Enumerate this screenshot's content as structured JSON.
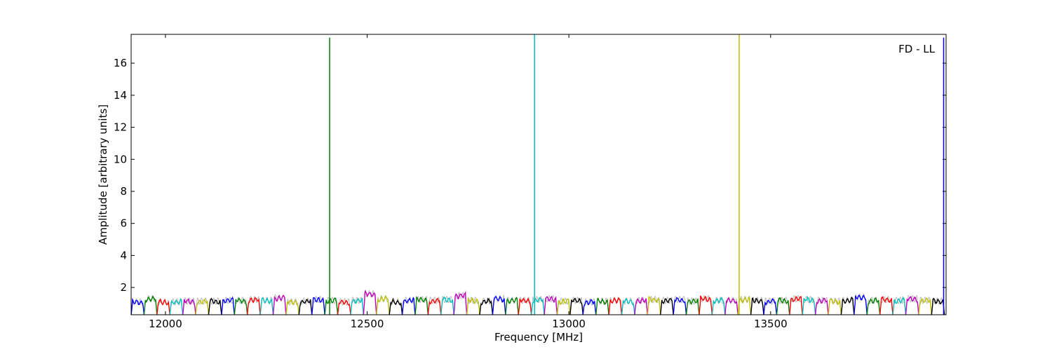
{
  "chart_data": {
    "type": "line",
    "title": "",
    "annotation": "FD - LL",
    "xlabel": "Frequency [MHz]",
    "ylabel": "Amplitude [arbitrary units]",
    "xlim": [
      11915,
      13935
    ],
    "ylim": [
      0.3,
      17.8
    ],
    "xticks": [
      12000,
      12500,
      13000,
      13500
    ],
    "xtick_labels": [
      "12000",
      "12500",
      "13000",
      "13500"
    ],
    "yticks": [
      2,
      4,
      6,
      8,
      10,
      12,
      14,
      16
    ],
    "ytick_labels": [
      "2",
      "4",
      "6",
      "8",
      "10",
      "12",
      "14",
      "16"
    ],
    "grid": false,
    "legend": "none",
    "channel_width_mhz": 32,
    "channel_start_mhz": 11915,
    "channel_count": 63,
    "color_cycle": [
      "#0000ff",
      "#008000",
      "#ff0000",
      "#00bfbf",
      "#bf00bf",
      "#bfbf00",
      "#000000"
    ],
    "channel_peak_levels": [
      1.2,
      1.4,
      1.2,
      1.2,
      1.25,
      1.25,
      1.25,
      1.3,
      1.3,
      1.35,
      1.3,
      1.45,
      1.2,
      1.25,
      1.35,
      1.3,
      1.2,
      1.3,
      1.7,
      1.4,
      1.2,
      1.3,
      1.35,
      1.3,
      1.35,
      1.6,
      1.3,
      1.25,
      1.4,
      1.3,
      1.3,
      1.35,
      1.4,
      1.25,
      1.3,
      1.2,
      1.25,
      1.3,
      1.25,
      1.3,
      1.35,
      1.3,
      1.35,
      1.25,
      1.4,
      1.3,
      1.3,
      1.35,
      1.3,
      1.25,
      1.3,
      1.4,
      1.35,
      1.3,
      1.25,
      1.3,
      1.5,
      1.3,
      1.35,
      1.3,
      1.4,
      1.3,
      1.25
    ],
    "background_trace_color": "#bbbbbb",
    "spikes": [
      {
        "x": 12407,
        "y": 17.6,
        "color": "#008000"
      },
      {
        "x": 12915,
        "y": 17.8,
        "color": "#00bfbf"
      },
      {
        "x": 13422,
        "y": 17.8,
        "color": "#bfbf00"
      },
      {
        "x": 13929,
        "y": 17.6,
        "color": "#0000ff"
      }
    ]
  }
}
